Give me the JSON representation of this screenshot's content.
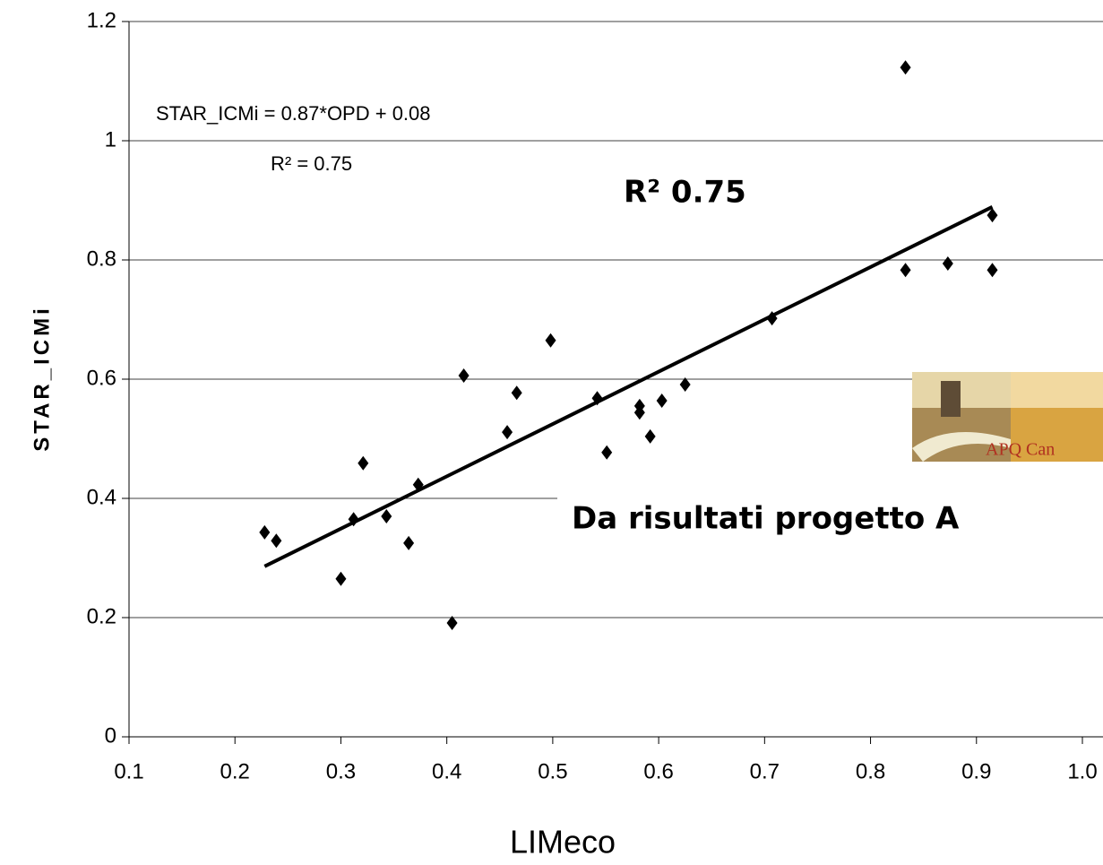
{
  "chart_data": {
    "type": "scatter",
    "x_label": "LIMeco",
    "y_label": "STAR_ICMi",
    "x": [
      0.228,
      0.239,
      0.3,
      0.312,
      0.321,
      0.343,
      0.364,
      0.373,
      0.405,
      0.416,
      0.457,
      0.466,
      0.498,
      0.542,
      0.551,
      0.582,
      0.582,
      0.592,
      0.603,
      0.625,
      0.707,
      0.833,
      0.833,
      0.873,
      0.915,
      0.915
    ],
    "values": [
      0.343,
      0.329,
      0.265,
      0.365,
      0.459,
      0.37,
      0.325,
      0.423,
      0.191,
      0.606,
      0.511,
      0.577,
      0.665,
      0.568,
      0.477,
      0.555,
      0.544,
      0.504,
      0.564,
      0.591,
      0.702,
      0.783,
      1.123,
      0.794,
      0.875,
      0.783
    ],
    "color": "#000000",
    "trendline": {
      "x": [
        0.228,
        0.915
      ],
      "values": [
        0.286,
        0.889
      ]
    },
    "xlim": [
      0.1,
      1.0
    ],
    "xticks": [
      0.1,
      0.2,
      0.3,
      0.4,
      0.5,
      0.6,
      0.7,
      0.8,
      0.9,
      {
        "value": 1.0,
        "label": "1.0"
      }
    ],
    "ylim": [
      0,
      1.2
    ],
    "yticks": [
      0,
      0.2,
      0.4,
      0.6,
      0.8,
      1,
      1.2
    ],
    "grid": true,
    "annotations": [
      "STAR_ICMi = 0.87*OPD + 0.08",
      "R² = 0.75",
      "R² 0.75",
      "Da risultati progetto A",
      "APQ Can"
    ]
  }
}
